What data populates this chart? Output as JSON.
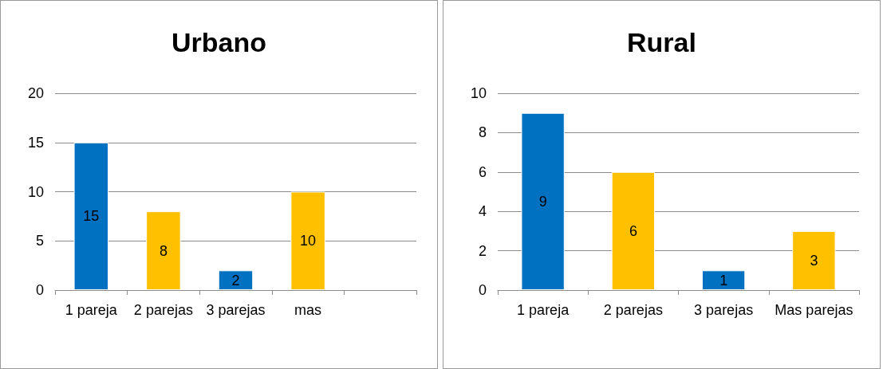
{
  "chart_data": [
    {
      "type": "bar",
      "title": "Urbano",
      "categories": [
        "1 pareja",
        "2 parejas",
        "3 parejas",
        "mas",
        null
      ],
      "values": [
        15,
        8,
        2,
        10,
        null
      ],
      "colors": [
        "#0070c0",
        "#ffc000",
        "#0070c0",
        "#ffc000",
        null
      ],
      "ylim": [
        0,
        20
      ],
      "yticks": [
        0,
        5,
        10,
        15,
        20
      ],
      "grid": "y",
      "data_labels": true
    },
    {
      "type": "bar",
      "title": "Rural",
      "categories": [
        "1 pareja",
        "2 parejas",
        "3 parejas",
        "Mas parejas"
      ],
      "values": [
        9,
        6,
        1,
        3
      ],
      "colors": [
        "#0070c0",
        "#ffc000",
        "#0070c0",
        "#ffc000"
      ],
      "ylim": [
        0,
        10
      ],
      "yticks": [
        0,
        2,
        4,
        6,
        8,
        10
      ],
      "grid": "y",
      "data_labels": true
    }
  ]
}
